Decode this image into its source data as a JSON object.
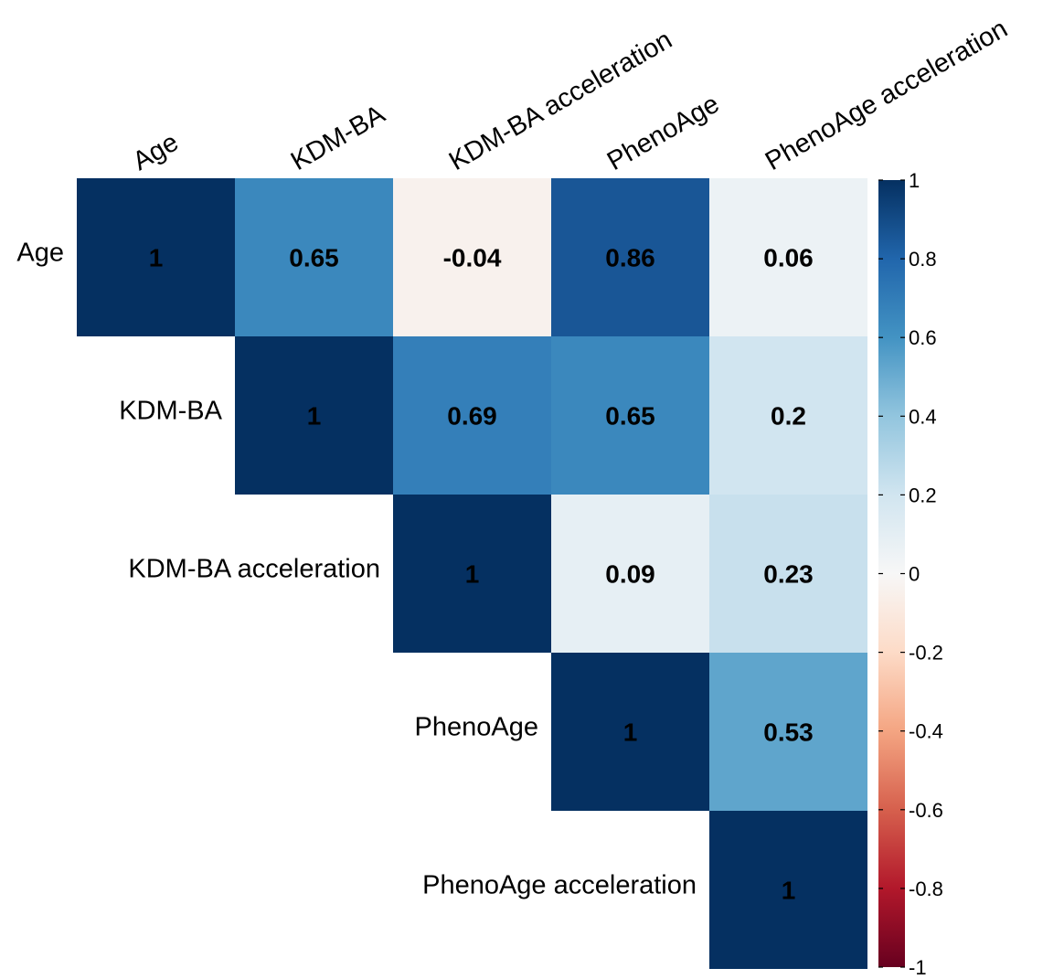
{
  "chart_data": {
    "type": "heatmap",
    "title": "",
    "variables": [
      "Age",
      "KDM-BA",
      "KDM-BA acceleration",
      "PhenoAge",
      "PhenoAge acceleration"
    ],
    "layout": "upper-triangle",
    "matrix": [
      [
        1,
        0.65,
        -0.04,
        0.86,
        0.06
      ],
      [
        null,
        1,
        0.69,
        0.65,
        0.2
      ],
      [
        null,
        null,
        1,
        0.09,
        0.23
      ],
      [
        null,
        null,
        null,
        1,
        0.53
      ],
      [
        null,
        null,
        null,
        null,
        1
      ]
    ],
    "colorbar": {
      "range": [
        -1,
        1
      ],
      "ticks": [
        1,
        0.8,
        0.6,
        0.4,
        0.2,
        0,
        -0.2,
        -0.4,
        -0.6,
        -0.8,
        -1
      ],
      "tick_labels": [
        "1",
        "0.8",
        "0.6",
        "0.4",
        "0.2",
        "0",
        "-0.2",
        "-0.4",
        "-0.6",
        "-0.8",
        "-1"
      ],
      "colors": {
        "-1": "#67001f",
        "-0.8": "#b2182b",
        "-0.6": "#d6604d",
        "-0.4": "#f4a582",
        "-0.2": "#fddbc7",
        "0": "#f7f7f7",
        "0.2": "#d1e5f0",
        "0.4": "#92c5de",
        "0.6": "#4393c3",
        "0.8": "#2166ac",
        "1": "#053061"
      }
    },
    "grid": false,
    "legend": "right"
  }
}
